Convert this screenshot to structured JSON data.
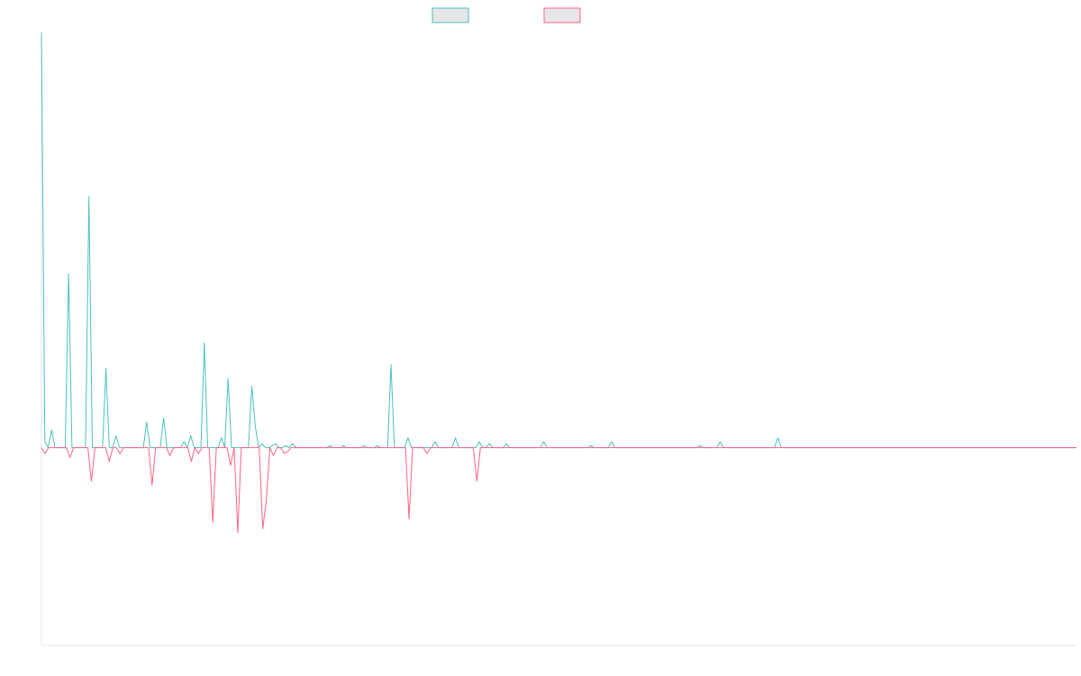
{
  "colors": {
    "series_1": "#4bc0c0",
    "series_1_fill": "#e6e6e6",
    "series_2": "#ff6384",
    "series_2_fill": "#e6e6e6",
    "axis": "#e6e6e6"
  },
  "legend": {
    "placement": "top-center",
    "items": [
      {
        "label": "",
        "color": "#4bc0c0"
      },
      {
        "label": "",
        "color": "#ff6384"
      }
    ]
  },
  "chart_data": {
    "type": "line",
    "title": "",
    "xlabel": "",
    "ylabel": "",
    "x_range": [
      0,
      143
    ],
    "ylim": [
      -100,
      210
    ],
    "grid": false,
    "series": [
      {
        "name": "",
        "values": [
          210,
          3,
          0,
          9,
          0,
          0,
          0,
          0,
          88,
          0,
          0,
          0,
          0,
          0,
          127,
          0,
          0,
          0,
          0,
          40,
          0,
          0,
          6,
          0,
          0,
          0,
          0,
          0,
          0,
          0,
          0,
          13,
          0,
          0,
          0,
          0,
          15,
          0,
          0,
          0,
          0,
          0,
          3,
          0,
          6,
          0,
          0,
          0,
          53,
          0,
          0,
          0,
          0,
          5,
          0,
          35,
          0,
          0,
          0,
          0,
          0,
          0,
          31,
          11,
          0,
          2,
          0,
          0,
          1,
          2,
          0,
          0,
          1,
          0,
          2,
          0,
          0,
          0,
          0,
          0,
          0,
          0,
          0,
          0,
          0,
          1,
          0,
          0,
          0,
          1,
          0,
          0,
          0,
          0,
          0,
          1,
          0,
          0,
          0,
          1,
          0,
          0,
          0,
          42,
          0,
          0,
          0,
          0,
          5,
          0,
          0,
          0,
          0,
          0,
          0,
          0,
          3,
          0,
          0,
          0,
          0,
          0,
          5,
          0,
          0,
          0,
          0,
          0,
          0,
          3,
          0,
          0,
          2,
          0,
          0,
          0,
          0,
          2,
          0,
          0,
          0,
          0,
          0,
          0,
          0,
          0,
          0,
          0,
          3,
          0,
          0,
          0,
          0,
          0,
          0,
          0,
          0,
          0,
          0,
          0,
          0,
          0,
          1,
          0,
          0,
          0,
          0,
          0,
          3,
          0,
          0,
          0,
          0,
          0,
          0,
          0,
          0,
          0,
          0,
          0,
          0,
          0,
          0,
          0,
          0,
          0,
          0,
          0,
          0,
          0,
          0,
          0,
          0,
          0,
          1,
          0,
          0,
          0,
          0,
          0,
          3,
          0,
          0,
          0,
          0,
          0,
          0,
          0,
          0,
          0,
          0,
          0,
          0,
          0,
          0,
          0,
          0,
          5,
          0,
          0,
          0,
          0,
          0,
          0,
          0,
          0,
          0,
          0,
          0,
          0,
          0,
          0,
          0,
          0,
          0,
          0,
          0,
          0,
          0,
          0,
          0,
          0,
          0,
          0,
          0,
          0,
          0,
          0,
          0,
          0,
          0,
          0,
          0,
          0,
          0,
          0,
          0,
          0,
          0,
          0,
          0,
          0,
          0,
          0,
          0,
          0,
          0,
          0,
          0,
          0,
          0,
          0,
          0,
          0,
          0,
          0,
          0,
          0,
          0,
          0,
          0,
          0,
          0,
          0,
          0,
          0,
          0,
          0,
          0,
          0,
          0,
          0,
          0,
          0,
          0,
          0,
          0,
          0,
          0,
          0,
          0,
          0,
          0,
          0,
          0,
          0
        ]
      },
      {
        "name": "",
        "values": [
          0,
          -3,
          0,
          0,
          0,
          0,
          0,
          0,
          -5,
          0,
          0,
          0,
          0,
          0,
          -17,
          0,
          0,
          0,
          0,
          -7,
          0,
          0,
          -3,
          0,
          0,
          0,
          0,
          0,
          0,
          0,
          0,
          -19,
          0,
          0,
          0,
          0,
          -4,
          0,
          0,
          0,
          0,
          0,
          -7,
          0,
          -3,
          0,
          0,
          0,
          -38,
          0,
          0,
          0,
          0,
          -9,
          0,
          -43,
          0,
          0,
          0,
          0,
          0,
          0,
          -41,
          -27,
          0,
          -4,
          0,
          0,
          -3,
          -2,
          0,
          0,
          0,
          0,
          0,
          0,
          0,
          0,
          0,
          0,
          0,
          0,
          0,
          0,
          0,
          0,
          0,
          0,
          0,
          0,
          0,
          0,
          0,
          0,
          0,
          0,
          0,
          0,
          0,
          0,
          0,
          0,
          0,
          -36,
          0,
          0,
          0,
          0,
          -3,
          0,
          0,
          0,
          0,
          0,
          0,
          0,
          0,
          0,
          0,
          0,
          0,
          0,
          -17,
          0,
          0,
          0,
          0,
          0,
          0,
          0,
          0,
          0,
          0,
          0,
          0,
          0,
          0,
          0,
          0,
          0,
          0,
          0,
          0,
          0,
          0,
          0,
          0,
          0,
          0,
          0,
          0,
          0,
          0,
          0,
          0,
          0,
          0,
          0,
          0,
          0,
          0,
          0,
          0,
          0,
          0,
          0,
          0,
          0,
          0,
          0,
          0,
          0,
          0,
          0,
          0,
          0,
          0,
          0,
          0,
          0,
          0,
          0,
          0,
          0,
          0,
          0,
          0,
          0,
          0,
          0,
          0,
          0,
          0,
          0,
          0,
          0,
          0,
          0,
          0,
          0,
          0,
          0,
          0,
          0,
          0,
          0,
          0,
          0,
          0,
          0,
          0,
          0,
          0,
          0,
          0,
          0,
          0,
          0,
          0,
          0,
          0,
          0,
          0,
          0,
          0,
          0,
          0,
          0,
          0,
          0,
          0,
          0,
          0,
          0,
          0,
          0,
          0,
          0,
          0,
          0,
          0,
          0,
          0,
          0,
          0,
          0,
          0,
          0,
          0,
          0,
          0,
          0,
          0,
          0,
          0,
          0,
          0,
          0,
          0,
          0,
          0,
          0,
          0,
          0,
          0,
          0,
          0,
          0,
          0,
          0,
          0,
          0,
          0,
          0,
          0,
          0,
          0,
          0,
          0,
          0,
          0,
          0,
          0,
          0,
          0,
          0,
          0,
          0,
          0,
          0,
          0
        ]
      }
    ]
  }
}
